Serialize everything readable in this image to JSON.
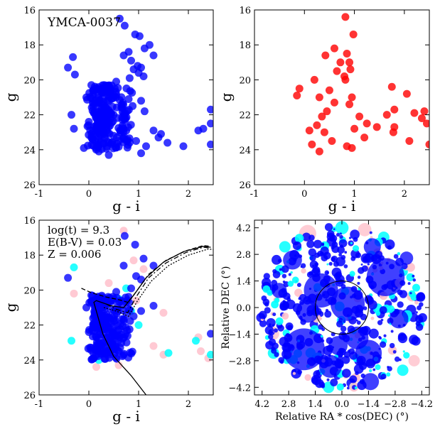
{
  "colors": {
    "members": "#0000ff",
    "field": "#ff0000",
    "cyan": "#00ffff",
    "pink": "#ffc0cb",
    "isochrone": "#000000"
  },
  "chart_data": [
    {
      "id": "p1",
      "type": "scatter",
      "title": "YMCA-0037",
      "xlabel": "g - i",
      "ylabel": "g",
      "xlim": [
        -1,
        2.5
      ],
      "ylim": [
        26,
        16
      ],
      "y_inverted": true,
      "xticks": [
        "-1",
        "0",
        "1",
        "2"
      ],
      "yticks": [
        "16",
        "18",
        "20",
        "22",
        "24",
        "26"
      ],
      "series": [
        {
          "name": "stars",
          "color": "#0000ff",
          "points": [
            [
              0.62,
              16.5
            ],
            [
              0.72,
              16.9
            ],
            [
              0.93,
              17.4
            ],
            [
              1.02,
              17.5
            ],
            [
              1.22,
              18.0
            ],
            [
              1.12,
              18.2
            ],
            [
              0.8,
              18.4
            ],
            [
              0.7,
              18.6
            ],
            [
              1.3,
              18.6
            ],
            [
              0.85,
              18.9
            ],
            [
              0.98,
              19.2
            ],
            [
              -0.32,
              18.7
            ],
            [
              -0.42,
              19.3
            ],
            [
              1.05,
              19.3
            ],
            [
              0.9,
              19.4
            ],
            [
              1.0,
              19.6
            ],
            [
              1.1,
              19.8
            ],
            [
              0.82,
              19.9
            ],
            [
              0.55,
              20.1
            ],
            [
              -0.28,
              19.7
            ],
            [
              0.52,
              20.5
            ],
            [
              0.8,
              21.1
            ],
            [
              1.05,
              21.2
            ],
            [
              0.88,
              21.5
            ],
            [
              1.12,
              21.8
            ],
            [
              2.45,
              21.7
            ],
            [
              -0.35,
              22.0
            ],
            [
              -0.3,
              22.8
            ],
            [
              1.3,
              22.9
            ],
            [
              1.45,
              23.1
            ],
            [
              2.2,
              22.9
            ],
            [
              2.3,
              22.8
            ],
            [
              2.45,
              22.5
            ],
            [
              1.9,
              23.8
            ],
            [
              2.45,
              23.7
            ],
            [
              1.58,
              23.6
            ],
            [
              1.15,
              23.8
            ],
            [
              1.05,
              24.2
            ],
            [
              0.4,
              24.3
            ],
            [
              0.2,
              24.1
            ],
            [
              -0.1,
              23.9
            ],
            [
              1.4,
              23.3
            ],
            [
              0.95,
              23.5
            ],
            [
              0.05,
              20.3
            ],
            [
              -0.05,
              21.0
            ],
            [
              0.2,
              21.3
            ],
            [
              0.35,
              21.6
            ],
            [
              0.1,
              21.9
            ],
            [
              0.25,
              22.2
            ],
            [
              0.4,
              22.4
            ],
            [
              0.15,
              22.7
            ],
            [
              0.3,
              23.0
            ],
            [
              0.5,
              23.2
            ],
            [
              0.6,
              23.5
            ],
            [
              0.05,
              23.3
            ],
            [
              0.7,
              22.8
            ],
            [
              0.45,
              21.9
            ],
            [
              0.0,
              22.4
            ]
          ]
        }
      ]
    },
    {
      "id": "p2",
      "type": "scatter",
      "title": "",
      "xlabel": "g - i",
      "ylabel": "g",
      "xlim": [
        -1,
        2.5
      ],
      "ylim": [
        26,
        16
      ],
      "y_inverted": true,
      "xticks": [
        "-1",
        "0",
        "1",
        "2"
      ],
      "yticks": [
        "16",
        "18",
        "20",
        "22",
        "24",
        "26"
      ],
      "series": [
        {
          "name": "field",
          "color": "#ff0000",
          "points": [
            [
              0.82,
              16.4
            ],
            [
              0.98,
              17.4
            ],
            [
              0.6,
              18.2
            ],
            [
              0.85,
              18.5
            ],
            [
              0.42,
              18.6
            ],
            [
              0.72,
              19.0
            ],
            [
              0.9,
              19.0
            ],
            [
              0.92,
              19.4
            ],
            [
              0.65,
              19.5
            ],
            [
              0.8,
              19.8
            ],
            [
              0.82,
              20.0
            ],
            [
              0.2,
              20.0
            ],
            [
              -0.1,
              20.5
            ],
            [
              -0.15,
              20.9
            ],
            [
              1.75,
              20.4
            ],
            [
              2.05,
              20.8
            ],
            [
              0.95,
              21.0
            ],
            [
              0.9,
              21.4
            ],
            [
              1.8,
              21.7
            ],
            [
              1.65,
              22.0
            ],
            [
              2.2,
              21.9
            ],
            [
              2.4,
              21.8
            ],
            [
              2.35,
              22.2
            ],
            [
              1.8,
              22.7
            ],
            [
              2.45,
              22.5
            ],
            [
              1.45,
              22.7
            ],
            [
              1.25,
              22.5
            ],
            [
              1.1,
              22.1
            ],
            [
              1.0,
              22.8
            ],
            [
              1.2,
              23.3
            ],
            [
              2.1,
              23.5
            ],
            [
              1.78,
              23.0
            ],
            [
              2.5,
              23.7
            ],
            [
              0.95,
              23.9
            ],
            [
              0.85,
              23.8
            ],
            [
              0.3,
              24.1
            ],
            [
              0.55,
              23.5
            ],
            [
              0.4,
              23.0
            ],
            [
              0.25,
              22.6
            ],
            [
              0.35,
              22.1
            ],
            [
              0.45,
              21.8
            ],
            [
              0.1,
              22.9
            ],
            [
              0.15,
              23.7
            ],
            [
              0.6,
              21.3
            ],
            [
              0.3,
              21.0
            ],
            [
              0.5,
              20.6
            ]
          ]
        }
      ]
    },
    {
      "id": "p3",
      "type": "scatter",
      "title": "",
      "xlabel": "g - i",
      "ylabel": "g",
      "xlim": [
        -1,
        2.5
      ],
      "ylim": [
        26,
        16
      ],
      "y_inverted": true,
      "xticks": [
        "-1",
        "0",
        "1",
        "2"
      ],
      "yticks": [
        "16",
        "18",
        "20",
        "22",
        "24",
        "26"
      ],
      "annotations": [
        "log(t) = 9.3",
        "E(B-V) = 0.03",
        "Z = 0.006"
      ],
      "series": [
        {
          "name": "pink",
          "color": "#ffc0cb",
          "points": [
            [
              0.7,
              16.6
            ],
            [
              0.9,
              18.3
            ],
            [
              1.1,
              18.8
            ],
            [
              0.4,
              19.6
            ],
            [
              -0.3,
              20.2
            ],
            [
              0.95,
              20.6
            ],
            [
              1.5,
              21.3
            ],
            [
              2.2,
              22.7
            ],
            [
              2.25,
              23.5
            ],
            [
              2.4,
              23.9
            ],
            [
              1.5,
              23.7
            ],
            [
              1.3,
              23.2
            ],
            [
              0.6,
              24.3
            ],
            [
              0.15,
              24.4
            ]
          ]
        },
        {
          "name": "cyan",
          "color": "#00ffff",
          "points": [
            [
              -0.3,
              18.7
            ],
            [
              0.75,
              19.9
            ],
            [
              0.6,
              20.5
            ],
            [
              0.85,
              21.2
            ],
            [
              -0.35,
              22.9
            ],
            [
              2.15,
              22.9
            ],
            [
              2.45,
              23.7
            ],
            [
              1.6,
              23.6
            ],
            [
              1.0,
              22.0
            ],
            [
              0.2,
              24.0
            ]
          ]
        },
        {
          "name": "members",
          "color": "#0000ff",
          "points": [
            [
              0.72,
              16.9
            ],
            [
              0.93,
              17.4
            ],
            [
              1.1,
              18.2
            ],
            [
              0.7,
              18.6
            ],
            [
              1.3,
              18.6
            ],
            [
              0.95,
              19.2
            ],
            [
              -0.42,
              19.3
            ],
            [
              1.05,
              19.4
            ],
            [
              0.85,
              19.9
            ],
            [
              0.55,
              20.1
            ],
            [
              0.8,
              21.1
            ],
            [
              1.05,
              21.2
            ],
            [
              0.9,
              21.5
            ],
            [
              2.45,
              22.5
            ],
            [
              0.05,
              20.3
            ],
            [
              -0.05,
              21.0
            ],
            [
              0.2,
              21.3
            ],
            [
              0.35,
              21.6
            ],
            [
              0.1,
              21.9
            ],
            [
              0.25,
              22.2
            ],
            [
              0.4,
              22.4
            ],
            [
              0.15,
              22.7
            ],
            [
              0.3,
              23.0
            ],
            [
              0.5,
              23.2
            ],
            [
              0.6,
              23.5
            ],
            [
              0.05,
              23.3
            ],
            [
              0.45,
              21.9
            ],
            [
              0.0,
              22.4
            ],
            [
              1.3,
              20.9
            ]
          ]
        }
      ],
      "lines": [
        {
          "style": "solid",
          "points": [
            [
              1.15,
              26.0
            ],
            [
              0.85,
              24.9
            ],
            [
              0.5,
              23.8
            ],
            [
              0.28,
              22.5
            ],
            [
              0.15,
              21.2
            ],
            [
              0.1,
              20.7
            ],
            [
              0.15,
              20.6
            ],
            [
              0.45,
              20.9
            ],
            [
              0.7,
              21.0
            ],
            [
              0.9,
              20.3
            ],
            [
              1.15,
              19.3
            ],
            [
              1.5,
              18.4
            ],
            [
              1.9,
              17.8
            ],
            [
              2.3,
              17.5
            ],
            [
              2.45,
              17.55
            ]
          ]
        },
        {
          "style": "dashed",
          "points": [
            [
              -0.15,
              19.9
            ],
            [
              0.05,
              20.15
            ],
            [
              0.35,
              20.4
            ],
            [
              0.6,
              20.55
            ],
            [
              0.78,
              20.7
            ],
            [
              0.95,
              20.1
            ],
            [
              1.2,
              19.1
            ],
            [
              1.55,
              18.3
            ],
            [
              1.95,
              17.75
            ],
            [
              2.3,
              17.45
            ],
            [
              2.45,
              17.5
            ]
          ]
        },
        {
          "style": "dashdot",
          "points": [
            [
              0.35,
              20.8
            ],
            [
              0.55,
              21.1
            ],
            [
              0.78,
              21.3
            ],
            [
              0.95,
              20.4
            ],
            [
              1.2,
              19.3
            ],
            [
              1.55,
              18.45
            ],
            [
              1.95,
              17.85
            ],
            [
              2.3,
              17.55
            ],
            [
              2.45,
              17.6
            ]
          ]
        },
        {
          "style": "dotted",
          "points": [
            [
              0.3,
              21.0
            ],
            [
              0.55,
              21.2
            ],
            [
              0.8,
              21.5
            ],
            [
              0.98,
              20.6
            ],
            [
              1.25,
              19.5
            ],
            [
              1.6,
              18.6
            ],
            [
              2.0,
              18.0
            ],
            [
              2.4,
              17.65
            ],
            [
              2.55,
              17.7
            ]
          ]
        }
      ]
    },
    {
      "id": "p4",
      "type": "scatter",
      "title": "",
      "xlabel": "Relative RA * cos(DEC) (°)",
      "ylabel": "Relative DEC (°)",
      "xlim": [
        4.6,
        -4.6
      ],
      "ylim": [
        -4.6,
        4.6
      ],
      "x_inverted": true,
      "xticks": [
        "4.2",
        "2.8",
        "1.4",
        "0.0",
        "−1.4",
        "−2.8",
        "−4.2"
      ],
      "yticks": [
        "4.2",
        "2.8",
        "1.4",
        "0.0",
        "−1.4",
        "−2.8",
        "−4.2"
      ],
      "circle_radius": 1.4,
      "large_blobs": [
        [
          2.0,
          -2.2,
          1.1
        ],
        [
          -2.3,
          1.6,
          1.0
        ],
        [
          1.1,
          0.9,
          0.9
        ],
        [
          -1.4,
          -2.4,
          0.7
        ],
        [
          2.6,
          2.5,
          0.5
        ],
        [
          -0.3,
          0.2,
          0.9
        ],
        [
          1.8,
          -0.2,
          0.6
        ],
        [
          -3.0,
          -0.6,
          0.5
        ],
        [
          0.6,
          -3.1,
          0.6
        ],
        [
          -1.6,
          3.2,
          0.45
        ],
        [
          -0.8,
          -1.6,
          0.6
        ],
        [
          0.2,
          -2.0,
          0.5
        ],
        [
          3.3,
          0.9,
          0.4
        ],
        [
          -3.4,
          2.6,
          0.35
        ],
        [
          -1.5,
          -3.9,
          0.45
        ]
      ],
      "pink_blobs": [
        [
          1.8,
          3.9,
          0.45
        ],
        [
          -1.2,
          4.1,
          0.35
        ],
        [
          3.6,
          -1.4,
          0.3
        ],
        [
          -3.8,
          -2.8,
          0.3
        ]
      ],
      "cyan_blobs": [
        [
          0.0,
          4.2,
          0.35
        ],
        [
          -2.2,
          3.7,
          0.3
        ],
        [
          3.0,
          3.2,
          0.3
        ],
        [
          3.6,
          -2.4,
          0.3
        ],
        [
          -3.2,
          -3.3,
          0.3
        ],
        [
          0.7,
          -4.2,
          0.3
        ]
      ]
    }
  ]
}
